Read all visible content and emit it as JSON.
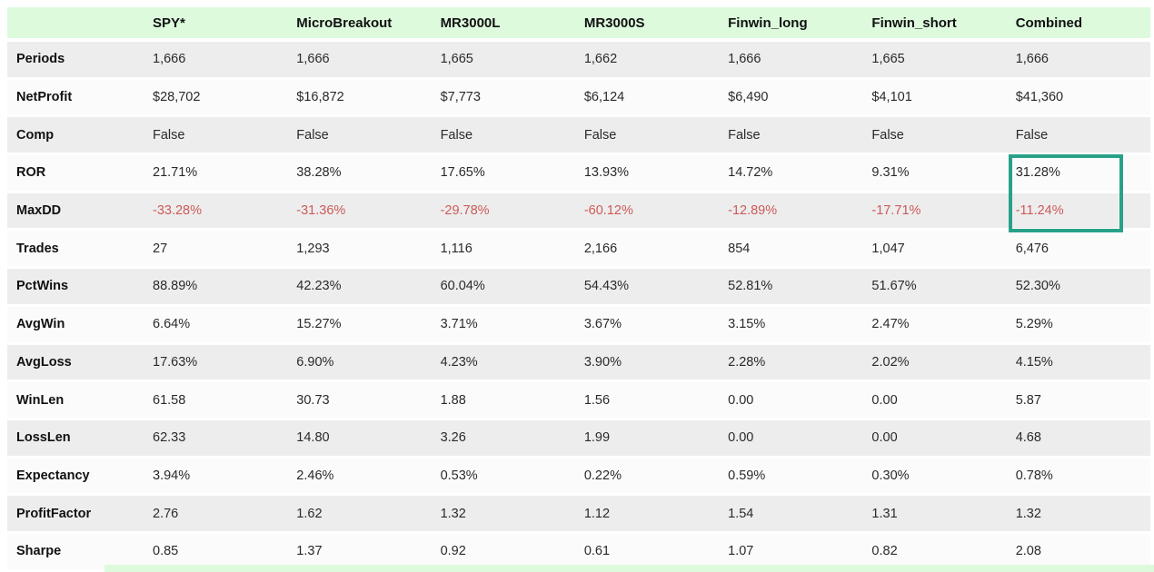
{
  "chart_data": {
    "type": "table",
    "columns": [
      "",
      "SPY*",
      "MicroBreakout",
      "MR3000L",
      "MR3000S",
      "Finwin_long",
      "Finwin_short",
      "Combined"
    ],
    "rows": [
      {
        "label": "Periods",
        "values": [
          "1,666",
          "1,666",
          "1,665",
          "1,662",
          "1,666",
          "1,665",
          "1,666"
        ]
      },
      {
        "label": "NetProfit",
        "values": [
          "$28,702",
          "$16,872",
          "$7,773",
          "$6,124",
          "$6,490",
          "$4,101",
          "$41,360"
        ]
      },
      {
        "label": "Comp",
        "values": [
          "False",
          "False",
          "False",
          "False",
          "False",
          "False",
          "False"
        ]
      },
      {
        "label": "ROR",
        "values": [
          "21.71%",
          "38.28%",
          "17.65%",
          "13.93%",
          "14.72%",
          "9.31%",
          "31.28%"
        ]
      },
      {
        "label": "MaxDD",
        "values": [
          "-33.28%",
          "-31.36%",
          "-29.78%",
          "-60.12%",
          "-12.89%",
          "-17.71%",
          "-11.24%"
        ],
        "negative": true
      },
      {
        "label": "Trades",
        "values": [
          "27",
          "1,293",
          "1,116",
          "2,166",
          "854",
          "1,047",
          "6,476"
        ]
      },
      {
        "label": "PctWins",
        "values": [
          "88.89%",
          "42.23%",
          "60.04%",
          "54.43%",
          "52.81%",
          "51.67%",
          "52.30%"
        ]
      },
      {
        "label": "AvgWin",
        "values": [
          "6.64%",
          "15.27%",
          "3.71%",
          "3.67%",
          "3.15%",
          "2.47%",
          "5.29%"
        ]
      },
      {
        "label": "AvgLoss",
        "values": [
          "17.63%",
          "6.90%",
          "4.23%",
          "3.90%",
          "2.28%",
          "2.02%",
          "4.15%"
        ]
      },
      {
        "label": "WinLen",
        "values": [
          "61.58",
          "30.73",
          "1.88",
          "1.56",
          "0.00",
          "0.00",
          "5.87"
        ]
      },
      {
        "label": "LossLen",
        "values": [
          "62.33",
          "14.80",
          "3.26",
          "1.99",
          "0.00",
          "0.00",
          "4.68"
        ]
      },
      {
        "label": "Expectancy",
        "values": [
          "3.94%",
          "2.46%",
          "0.53%",
          "0.22%",
          "0.59%",
          "0.30%",
          "0.78%"
        ]
      },
      {
        "label": "ProfitFactor",
        "values": [
          "2.76",
          "1.62",
          "1.32",
          "1.12",
          "1.54",
          "1.31",
          "1.32"
        ]
      },
      {
        "label": "Sharpe",
        "values": [
          "0.85",
          "1.37",
          "0.92",
          "0.61",
          "1.07",
          "0.82",
          "2.08"
        ]
      }
    ]
  },
  "highlight": {
    "column": "Combined",
    "rows": [
      "ROR",
      "MaxDD"
    ],
    "border_color": "#29a189"
  },
  "colors": {
    "header_bg": "#ddfadd",
    "row_alt_bg": "#ededed",
    "row_bg": "#fbfbfb",
    "negative_text": "#cd5a5a",
    "label_text": "#111111",
    "value_text": "#2a2a2a",
    "separator": "#ffffff"
  }
}
